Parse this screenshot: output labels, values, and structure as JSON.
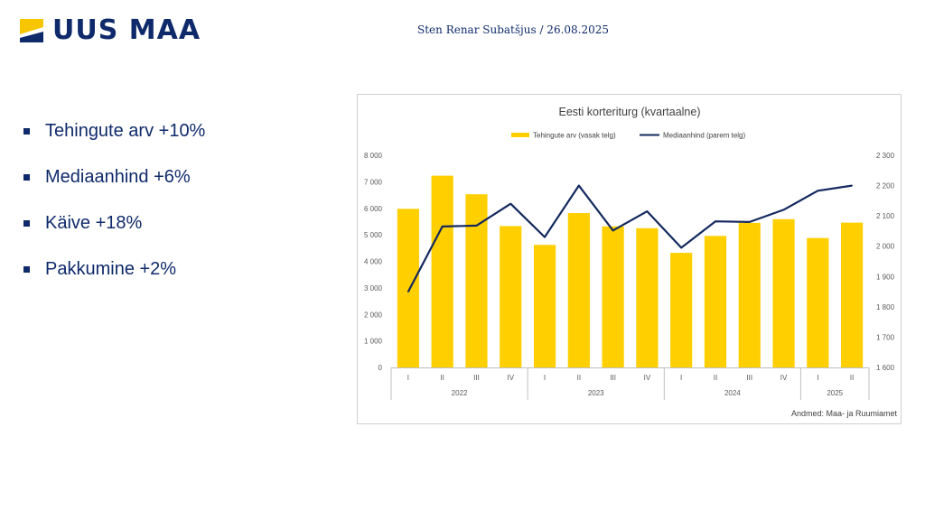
{
  "header": {
    "logo_text": "UUS MAA",
    "byline": "Sten Renar Subatšjus / 26.08.2025"
  },
  "bullets": [
    "Tehingute arv +10%",
    "Mediaanhind +6%",
    "Käive +18%",
    "Pakkumine +2%"
  ],
  "colors": {
    "brand_navy": "#0f2a6b",
    "brand_yellow": "#f7c600",
    "bar_fill": "#ffcf00",
    "line_color": "#13285e"
  },
  "chart_data": {
    "type": "bar",
    "title": "Eesti korteriturg (kvartaalne)",
    "legend": {
      "placement": "top"
    },
    "categories": [
      "I",
      "II",
      "III",
      "IV",
      "I",
      "II",
      "III",
      "IV",
      "I",
      "II",
      "III",
      "IV",
      "I",
      "II"
    ],
    "groups": [
      {
        "label": "2022",
        "count": 4
      },
      {
        "label": "2023",
        "count": 4
      },
      {
        "label": "2024",
        "count": 4
      },
      {
        "label": "2025",
        "count": 2
      }
    ],
    "series": [
      {
        "name": "Tehingute arv (vasak telg)",
        "type": "bar",
        "axis": "left",
        "values": [
          5980,
          7230,
          6530,
          5330,
          4620,
          5820,
          5320,
          5250,
          4320,
          4960,
          5450,
          5590,
          4880,
          5460
        ]
      },
      {
        "name": "Mediaanhind (parem telg)",
        "type": "line",
        "axis": "right",
        "values": [
          1850,
          2065,
          2068,
          2140,
          2030,
          2200,
          2052,
          2115,
          1995,
          2082,
          2080,
          2120,
          2183,
          2200
        ]
      }
    ],
    "y_left": {
      "ylim": [
        0,
        8000
      ],
      "ticks": [
        0,
        1000,
        2000,
        3000,
        4000,
        5000,
        6000,
        7000,
        8000
      ],
      "tick_labels": [
        "0",
        "1 000",
        "2 000",
        "3 000",
        "4 000",
        "5 000",
        "6 000",
        "7 000",
        "8 000"
      ]
    },
    "y_right": {
      "ylim": [
        1600,
        2300
      ],
      "ticks": [
        1600,
        1700,
        1800,
        1900,
        2000,
        2100,
        2200,
        2300
      ],
      "tick_labels": [
        "1 600",
        "1 700",
        "1 800",
        "1 900",
        "2 000",
        "2 100",
        "2 200",
        "2 300"
      ]
    },
    "grid": false,
    "source": "Andmed: Maa- ja Ruumiamet"
  }
}
